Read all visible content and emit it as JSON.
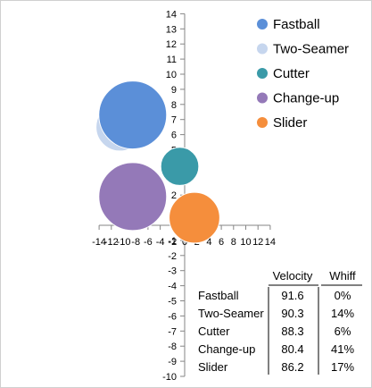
{
  "chart_data": {
    "type": "bubble",
    "xlim": [
      -14,
      14
    ],
    "ylim": [
      -10,
      14
    ],
    "x_ticks": [
      -14,
      -12,
      -10,
      -8,
      -6,
      -4,
      -2,
      0,
      2,
      4,
      6,
      8,
      10,
      12,
      14
    ],
    "y_ticks": [
      -10,
      -9,
      -8,
      -7,
      -6,
      -5,
      -4,
      -3,
      -2,
      -1,
      0,
      1,
      2,
      3,
      4,
      5,
      6,
      7,
      8,
      9,
      10,
      11,
      12,
      13,
      14
    ],
    "grid": false,
    "legend_position": "top-right",
    "series": [
      {
        "name": "Fastball",
        "x": -8.5,
        "y": 7.3,
        "size": 0.0,
        "color": "#5b8fd8"
      },
      {
        "name": "Two-Seamer",
        "x": -10.6,
        "y": 6.5,
        "size": 0.14,
        "color": "#c6d6ee"
      },
      {
        "name": "Cutter",
        "x": -0.8,
        "y": 3.9,
        "size": 0.06,
        "color": "#3a9aa8"
      },
      {
        "name": "Change-up",
        "x": -8.5,
        "y": 1.9,
        "size": 0.41,
        "color": "#9479b8"
      },
      {
        "name": "Slider",
        "x": 1.6,
        "y": 0.5,
        "size": 0.17,
        "color": "#f58e3c"
      }
    ],
    "table": {
      "headers": [
        "",
        "Velocity",
        "Whiff"
      ],
      "rows": [
        [
          "Fastball",
          "91.6",
          "0%"
        ],
        [
          "Two-Seamer",
          "90.3",
          "14%"
        ],
        [
          "Cutter",
          "88.3",
          "6%"
        ],
        [
          "Change-up",
          "80.4",
          "41%"
        ],
        [
          "Slider",
          "86.2",
          "17%"
        ]
      ]
    }
  }
}
